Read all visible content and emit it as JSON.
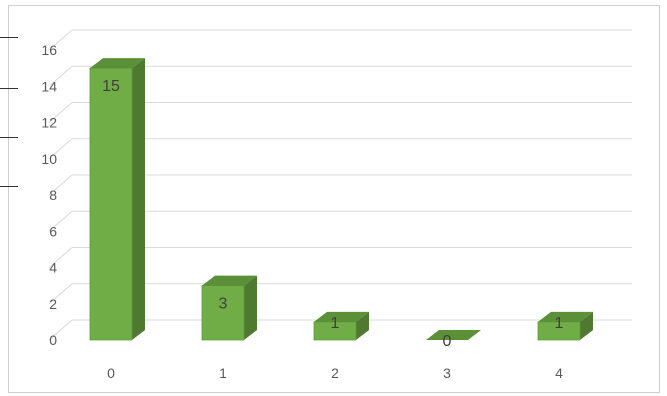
{
  "chart_data": {
    "type": "bar",
    "categories": [
      "0",
      "1",
      "2",
      "3",
      "4"
    ],
    "values": [
      15,
      3,
      1,
      0,
      1
    ],
    "title": "",
    "xlabel": "",
    "ylabel": "",
    "ylim": [
      0,
      16
    ],
    "yticks": [
      "0",
      "2",
      "4",
      "6",
      "8",
      "10",
      "12",
      "14",
      "16"
    ],
    "data_labels": [
      "15",
      "3",
      "1",
      "0",
      "1"
    ],
    "grid": true,
    "legend": "none",
    "style": "3d-column",
    "colors": {
      "bar_front": "#70ad47",
      "bar_side": "#4e7a2f",
      "bar_top": "#5b8f38",
      "grid": "#d9d9d9",
      "axis_text": "#595959"
    }
  }
}
